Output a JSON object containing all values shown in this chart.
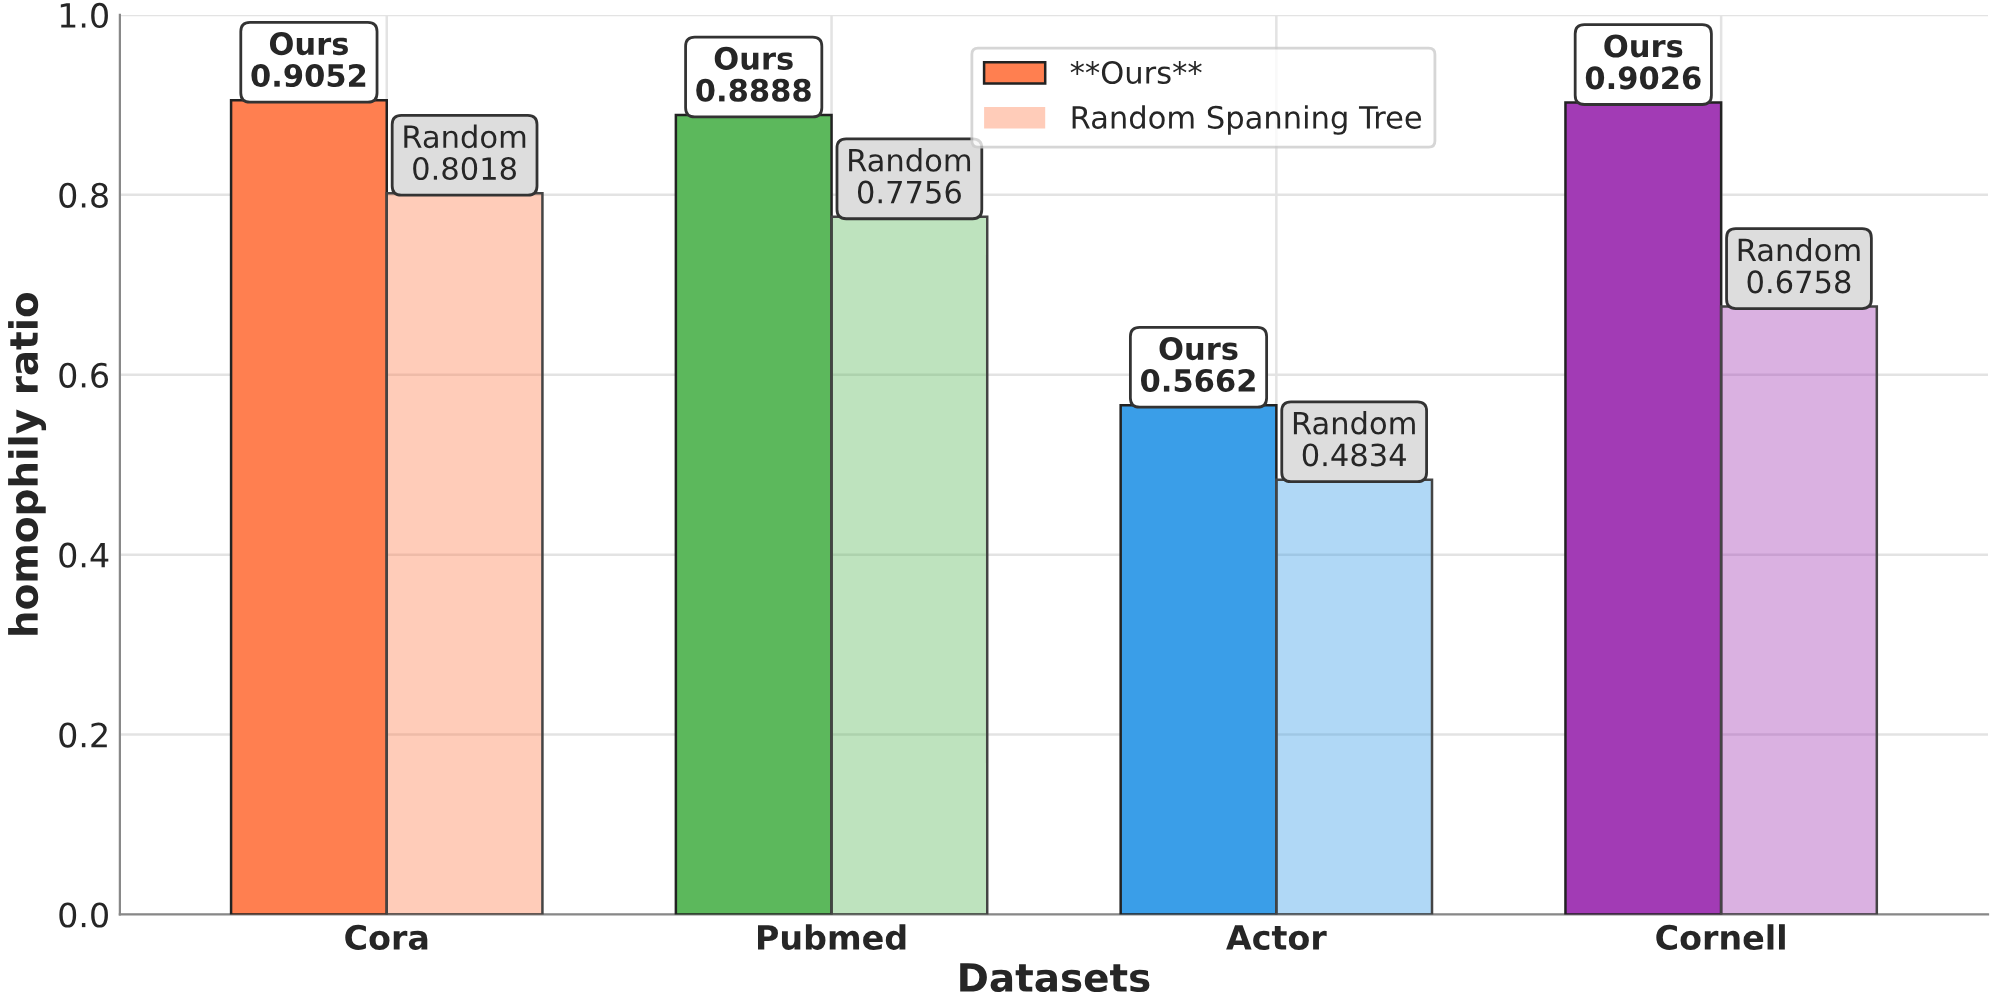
{
  "chart_data": {
    "type": "bar",
    "xlabel": "Datasets",
    "ylabel": "homophily ratio",
    "categories": [
      "Cora",
      "Pubmed",
      "Actor",
      "Cornell"
    ],
    "series": [
      {
        "name": "**Ours**",
        "colors": [
          "#ff7f50",
          "#5cb85c",
          "#3a9ee8",
          "#a23bb5"
        ],
        "values": [
          0.9052,
          0.8888,
          0.5662,
          0.9026
        ],
        "value_labels": [
          "Ours\n0.9052",
          "Ours\n0.8888",
          "Ours\n0.5662",
          "Ours\n0.9026"
        ]
      },
      {
        "name": "Random Spanning Tree",
        "colors": [
          "#ff7f50",
          "#5cb85c",
          "#3a9ee8",
          "#a23bb5"
        ],
        "values": [
          0.8018,
          0.7756,
          0.4834,
          0.6758
        ],
        "value_labels": [
          "Random\n0.8018",
          "Random\n0.7756",
          "Random\n0.4834",
          "Random\n0.6758"
        ]
      }
    ],
    "ylim": [
      0,
      1.0
    ],
    "yticks": [
      {
        "value": 0,
        "label": "0.0"
      },
      0.2,
      0.4,
      0.6,
      0.8,
      {
        "value": 1.0,
        "label": "1.0"
      }
    ],
    "grid": true,
    "legend": "top"
  }
}
